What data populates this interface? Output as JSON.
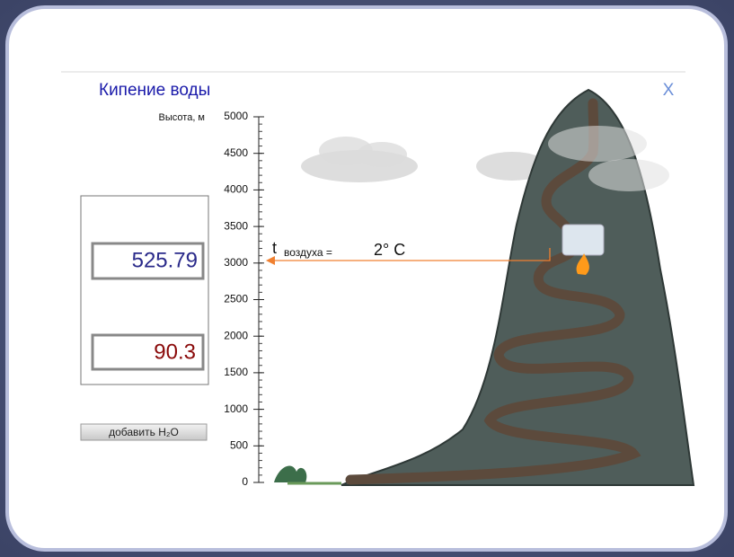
{
  "header": {
    "title": "Кипение воды",
    "close": "X"
  },
  "scale": {
    "label": "Высота, м",
    "ticks": [
      0,
      500,
      1000,
      1500,
      2000,
      2500,
      3000,
      3500,
      4000,
      4500,
      5000
    ]
  },
  "readouts": {
    "height": 525.79,
    "temperature": 90.3
  },
  "button": "добавить H₂O",
  "air_temperature": {
    "label": "t",
    "subscript": "воздуха =",
    "value": "2° C"
  }
}
